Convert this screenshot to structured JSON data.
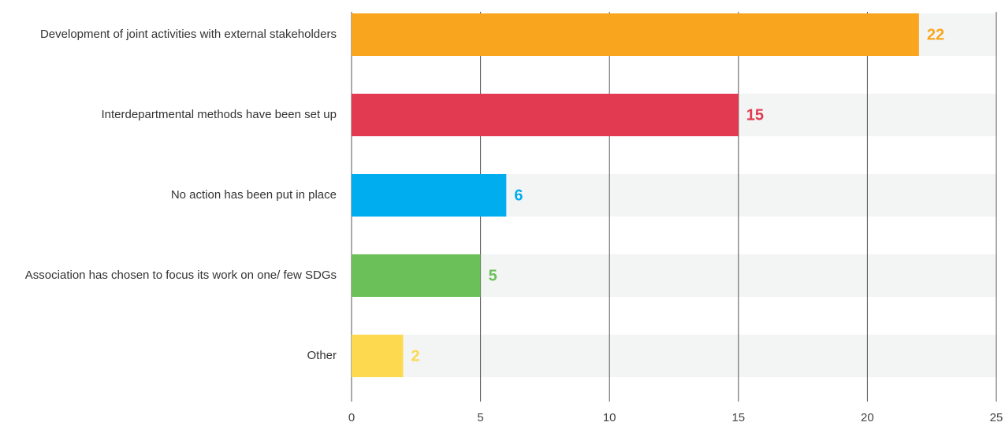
{
  "chart_data": {
    "type": "barh",
    "categories": [
      "Development of joint activities with external stakeholders",
      "Interdepartmental methods have been set up",
      "No action has been put in place",
      "Association has chosen to focus its work on one/ few SDGs",
      "Other"
    ],
    "values": [
      22,
      15,
      6,
      5,
      2
    ],
    "colors": [
      "#f9a61e",
      "#e23a51",
      "#00aeef",
      "#6cc05a",
      "#fcd94f"
    ],
    "track_color": "#f3f4f4",
    "xlim": [
      0,
      25
    ],
    "xticks": [
      0,
      5,
      10,
      15,
      20,
      25
    ],
    "grid": true
  }
}
